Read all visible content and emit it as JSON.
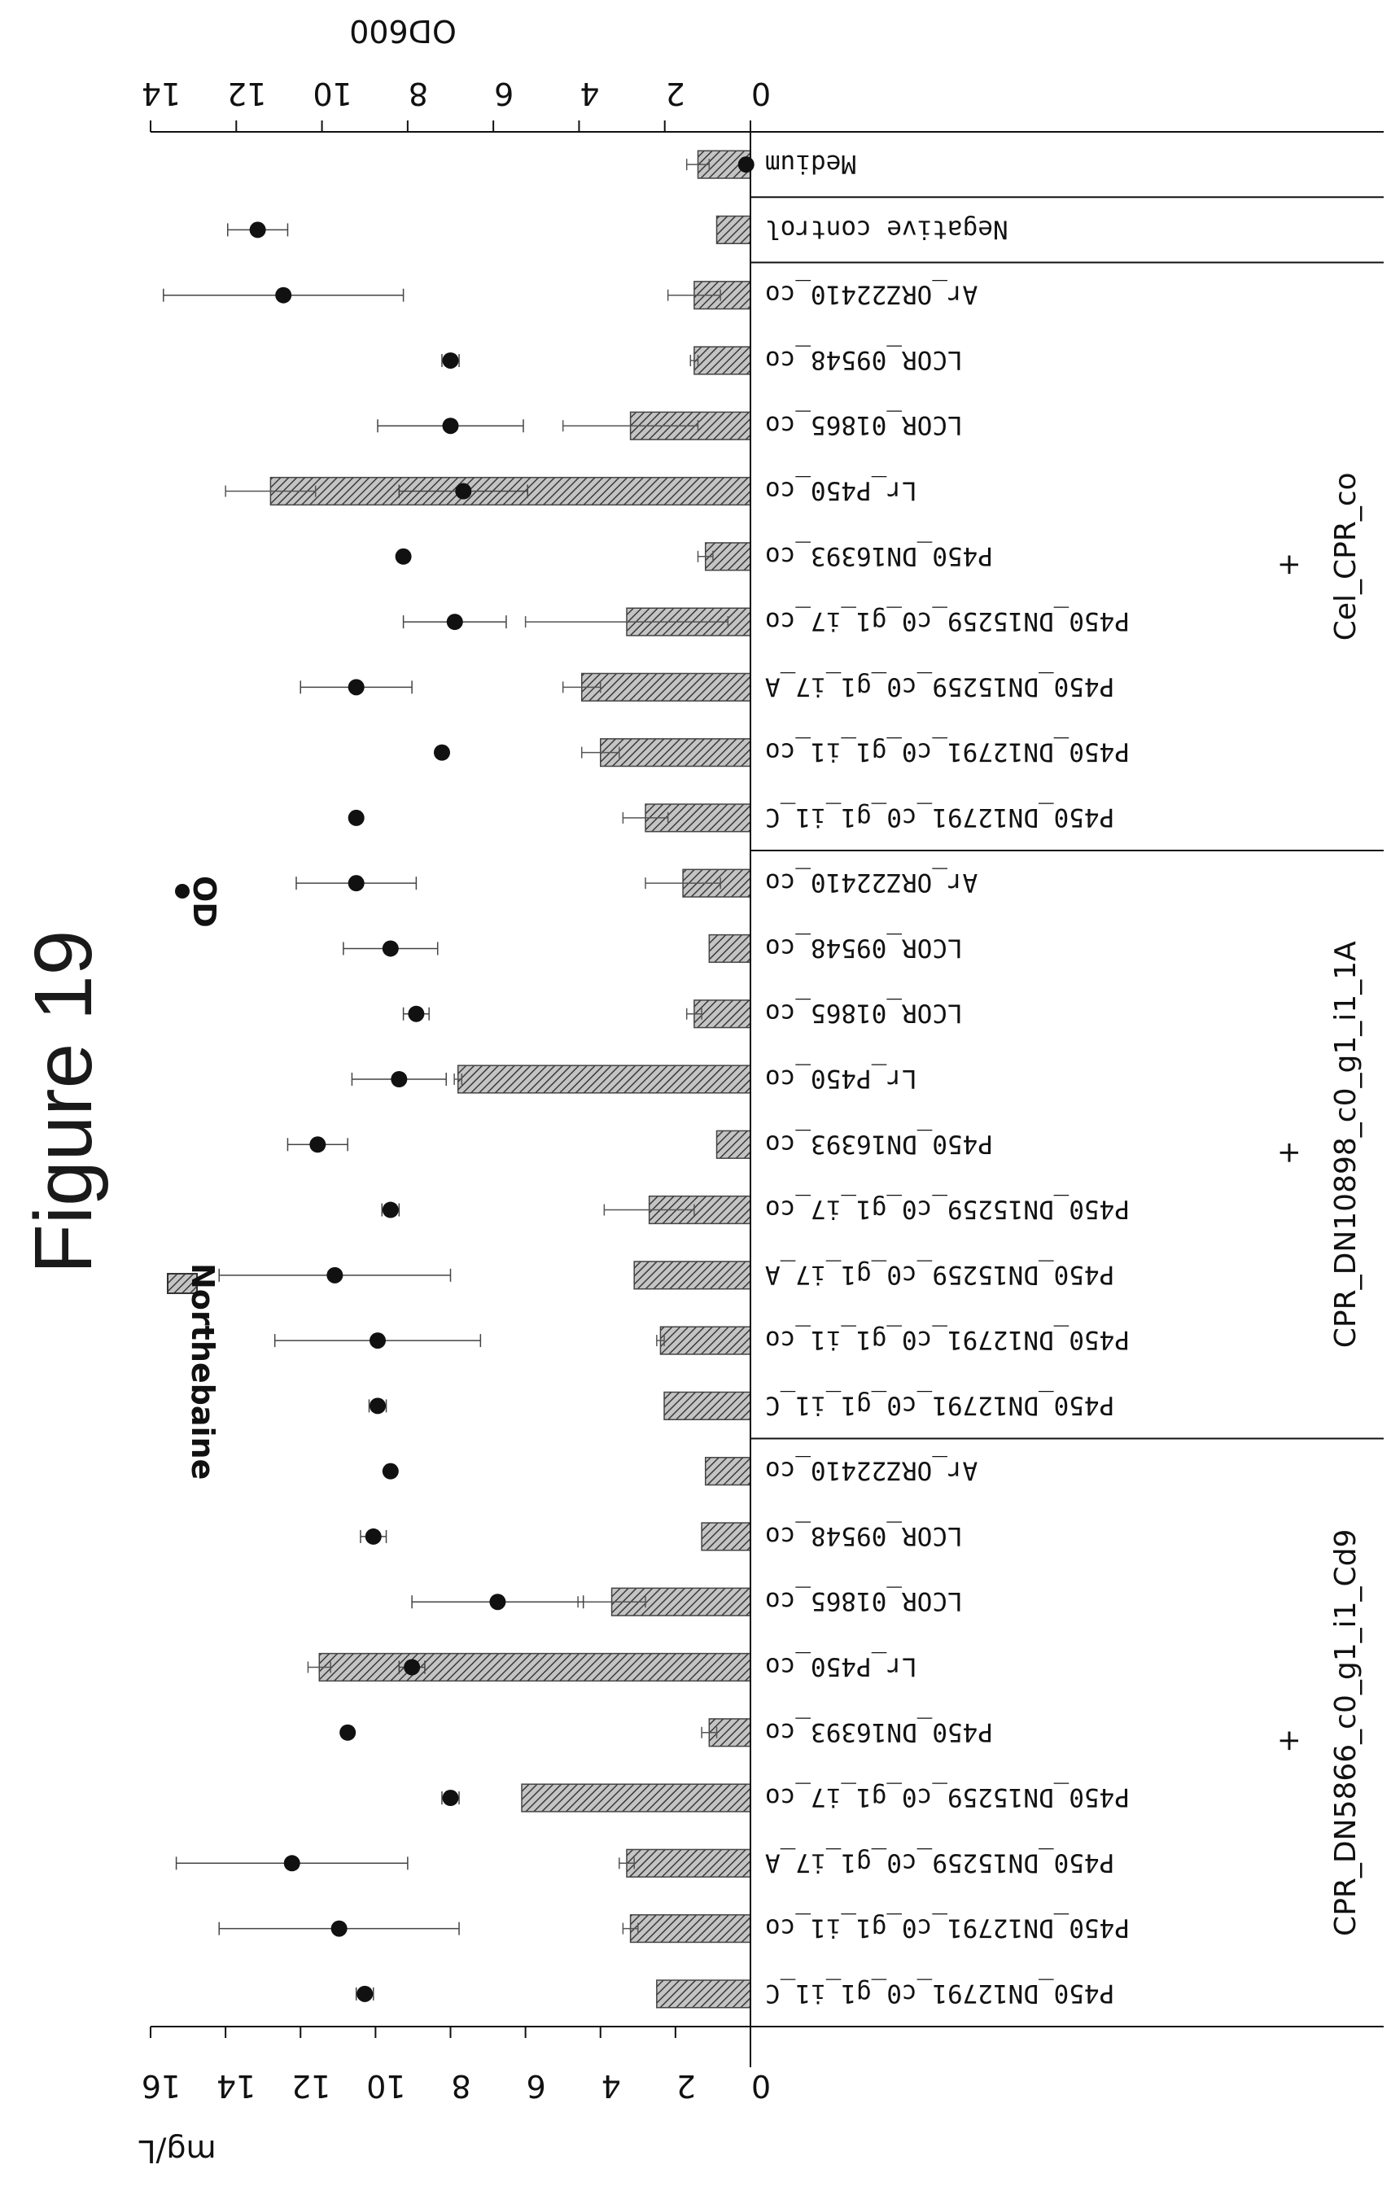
{
  "figure_title": "Figure 19",
  "chart_data": {
    "type": "bar",
    "title": "",
    "ylabel_left": "mg/L",
    "ylabel_right": "OD600",
    "ylim_left": [
      0,
      16
    ],
    "ylim_right": [
      0,
      14
    ],
    "left_ticks": [
      "0",
      "2",
      "4",
      "6",
      "8",
      "10",
      "12",
      "14",
      "16"
    ],
    "right_ticks": [
      "0",
      "2",
      "4",
      "6",
      "8",
      "10",
      "12",
      "14"
    ],
    "categories": [
      "P450_DN12791_c0_g1_i1_C",
      "P450_DN12791_c0_g1_i1_co",
      "P450_DN15259_c0_g1_i7_A",
      "P450_DN15259_c0_g1_i7_co",
      "P450_DN16393_co",
      "Lr_P450_co",
      "LCOR_01865_co",
      "LCOR_09548_co",
      "Ar_ORZ22410_co",
      "P450_DN12791_c0_g1_i1_C",
      "P450_DN12791_c0_g1_i1_co",
      "P450_DN15259_c0_g1_i7_A",
      "P450_DN15259_c0_g1_i7_co",
      "P450_DN16393_co",
      "Lr_P450_co",
      "LCOR_01865_co",
      "LCOR_09548_co",
      "Ar_ORZ22410_co",
      "P450_DN12791_c0_g1_i1_C",
      "P450_DN12791_c0_g1_i1_co",
      "P450_DN15259_c0_g1_i7_A",
      "P450_DN15259_c0_g1_i7_co",
      "P450_DN16393_co",
      "Lr_P450_co",
      "LCOR_01865_co",
      "LCOR_09548_co",
      "Ar_ORZ22410_co",
      "Negative control",
      "Medium"
    ],
    "groups": [
      {
        "label": "CPR_DN5866_c0_g1_i1_Cd9",
        "plus": "+",
        "start": 0,
        "end": 8
      },
      {
        "label": "CPR_DN10898_c0_g1_i1_1A",
        "plus": "+",
        "start": 9,
        "end": 17
      },
      {
        "label": "Cel_CPR_co",
        "plus": "+",
        "start": 18,
        "end": 26
      },
      {
        "label": "",
        "plus": "",
        "start": 27,
        "end": 27
      },
      {
        "label": "",
        "plus": "",
        "start": 28,
        "end": 28
      }
    ],
    "series": [
      {
        "name": "Northebaine",
        "kind": "bar",
        "axis": "left",
        "values": [
          2.5,
          3.2,
          3.3,
          6.1,
          1.1,
          11.5,
          3.7,
          1.3,
          1.2,
          2.3,
          2.4,
          3.1,
          2.7,
          0.9,
          7.8,
          1.5,
          1.1,
          1.8,
          2.8,
          4.0,
          4.5,
          3.3,
          1.2,
          12.8,
          3.2,
          1.5,
          1.5,
          0.9,
          1.4
        ],
        "errors": [
          0,
          0.2,
          0.2,
          0,
          0.2,
          0.3,
          0.9,
          0,
          0,
          0,
          0.1,
          0,
          1.2,
          0,
          0.1,
          0.2,
          0,
          1.0,
          0.6,
          0.5,
          0.5,
          2.7,
          0.2,
          1.2,
          1.8,
          0.1,
          0.7,
          0,
          0.3
        ],
        "color": "#8a8a8a"
      },
      {
        "name": "OD",
        "kind": "point",
        "axis": "right",
        "values": [
          9.0,
          9.6,
          10.7,
          7.0,
          9.4,
          7.9,
          5.9,
          8.8,
          8.4,
          8.7,
          8.7,
          9.7,
          8.4,
          10.1,
          8.2,
          7.8,
          8.4,
          9.2,
          9.2,
          7.2,
          9.2,
          6.9,
          8.1,
          6.7,
          7.0,
          7.0,
          10.9,
          11.5,
          0.1
        ],
        "errors": [
          0.2,
          2.8,
          2.7,
          0.2,
          0,
          0.3,
          2.0,
          0.3,
          0,
          0.2,
          2.4,
          2.7,
          0.2,
          0.7,
          1.1,
          0.3,
          1.1,
          1.4,
          0,
          0,
          1.3,
          1.2,
          0,
          1.5,
          1.7,
          0.2,
          2.8,
          0.7,
          0
        ]
      }
    ],
    "legend_placement": "top",
    "grid": false
  }
}
